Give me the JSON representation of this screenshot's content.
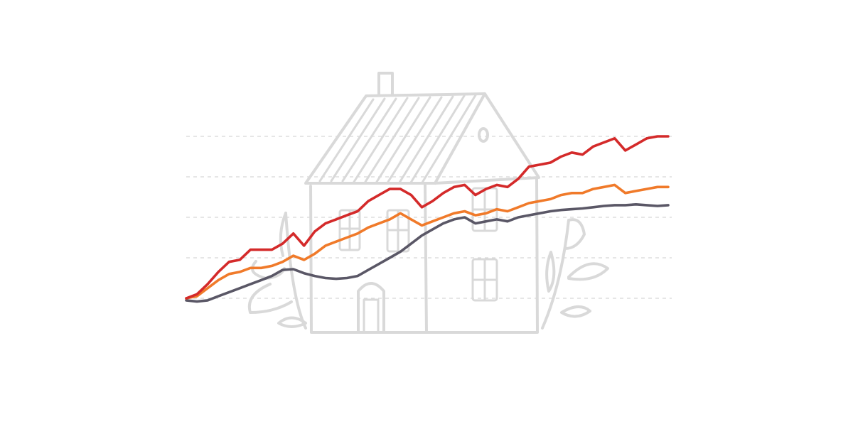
{
  "chart_data": {
    "type": "line",
    "title": "",
    "xlabel": "",
    "ylabel": "",
    "grid": true,
    "legend": "none",
    "x": [
      0,
      1,
      2,
      3,
      4,
      5,
      6,
      7,
      8,
      9,
      10,
      11,
      12,
      13,
      14,
      15,
      16,
      17,
      18,
      19,
      20,
      21,
      22,
      23,
      24,
      25,
      26,
      27,
      28,
      29,
      30,
      31,
      32,
      33,
      34,
      35,
      36,
      37,
      38,
      39,
      40,
      41,
      42,
      43,
      44,
      45
    ],
    "ylim": [
      0,
      5
    ],
    "series": [
      {
        "color": "#d42a2a",
        "values": [
          0.0,
          0.1,
          0.35,
          0.65,
          0.9,
          0.95,
          1.2,
          1.2,
          1.2,
          1.35,
          1.6,
          1.3,
          1.65,
          1.85,
          1.95,
          2.05,
          2.15,
          2.4,
          2.55,
          2.7,
          2.7,
          2.55,
          2.25,
          2.4,
          2.6,
          2.75,
          2.8,
          2.55,
          2.7,
          2.8,
          2.75,
          2.95,
          3.25,
          3.3,
          3.35,
          3.5,
          3.6,
          3.55,
          3.75,
          3.85,
          3.95,
          3.65,
          3.8,
          3.95,
          4.0,
          4.0
        ]
      },
      {
        "color": "#f07a2a",
        "values": [
          0.0,
          0.05,
          0.25,
          0.45,
          0.6,
          0.65,
          0.75,
          0.75,
          0.8,
          0.9,
          1.05,
          0.95,
          1.1,
          1.3,
          1.4,
          1.5,
          1.6,
          1.75,
          1.85,
          1.95,
          2.1,
          1.95,
          1.8,
          1.9,
          2.0,
          2.1,
          2.15,
          2.05,
          2.1,
          2.2,
          2.15,
          2.25,
          2.35,
          2.4,
          2.45,
          2.55,
          2.6,
          2.6,
          2.7,
          2.75,
          2.8,
          2.6,
          2.65,
          2.7,
          2.75,
          2.75
        ]
      },
      {
        "color": "#5a5766",
        "values": [
          -0.05,
          -0.08,
          -0.05,
          0.05,
          0.15,
          0.25,
          0.35,
          0.45,
          0.55,
          0.7,
          0.72,
          0.62,
          0.55,
          0.5,
          0.48,
          0.5,
          0.55,
          0.7,
          0.85,
          1.0,
          1.15,
          1.35,
          1.55,
          1.7,
          1.85,
          1.95,
          2.0,
          1.85,
          1.9,
          1.95,
          1.9,
          2.0,
          2.05,
          2.1,
          2.15,
          2.18,
          2.2,
          2.22,
          2.25,
          2.28,
          2.3,
          2.3,
          2.32,
          2.3,
          2.28,
          2.3
        ]
      }
    ]
  },
  "illustration": {
    "subject": "house-sketch",
    "color": "#d9d9d9"
  }
}
